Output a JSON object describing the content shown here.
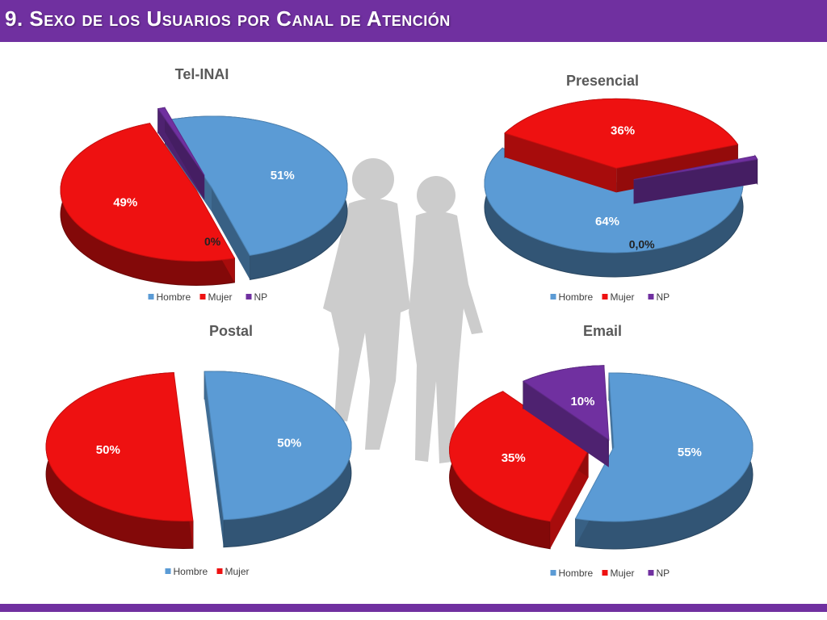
{
  "header": {
    "title": "9. Sexo de los Usuarios por Canal de Atención",
    "background_color": "#7030a0"
  },
  "chart_data": [
    {
      "type": "pie",
      "title": "Tel-INAI",
      "categories": [
        "Hombre",
        "Mujer",
        "NP"
      ],
      "values": [
        51,
        49,
        0
      ],
      "labels": [
        "51%",
        "49%",
        "0%"
      ],
      "legend": "bottom",
      "colors": [
        "#5b9bd5",
        "#ee1111",
        "#7030a0"
      ]
    },
    {
      "type": "pie",
      "title": "Presencial",
      "categories": [
        "Hombre",
        "Mujer",
        "NP"
      ],
      "values": [
        64,
        36,
        0
      ],
      "labels": [
        "64%",
        "36%",
        "0,0%"
      ],
      "legend": "bottom",
      "colors": [
        "#5b9bd5",
        "#ee1111",
        "#7030a0"
      ]
    },
    {
      "type": "pie",
      "title": "Postal",
      "categories": [
        "Hombre",
        "Mujer"
      ],
      "values": [
        50,
        50
      ],
      "labels": [
        "50%",
        "50%"
      ],
      "legend": "bottom",
      "colors": [
        "#5b9bd5",
        "#ee1111"
      ]
    },
    {
      "type": "pie",
      "title": "Email",
      "categories": [
        "Hombre",
        "Mujer",
        "NP"
      ],
      "values": [
        55,
        35,
        10
      ],
      "labels": [
        "55%",
        "35%",
        "10%"
      ],
      "legend": "bottom",
      "colors": [
        "#5b9bd5",
        "#ee1111",
        "#7030a0"
      ]
    }
  ]
}
